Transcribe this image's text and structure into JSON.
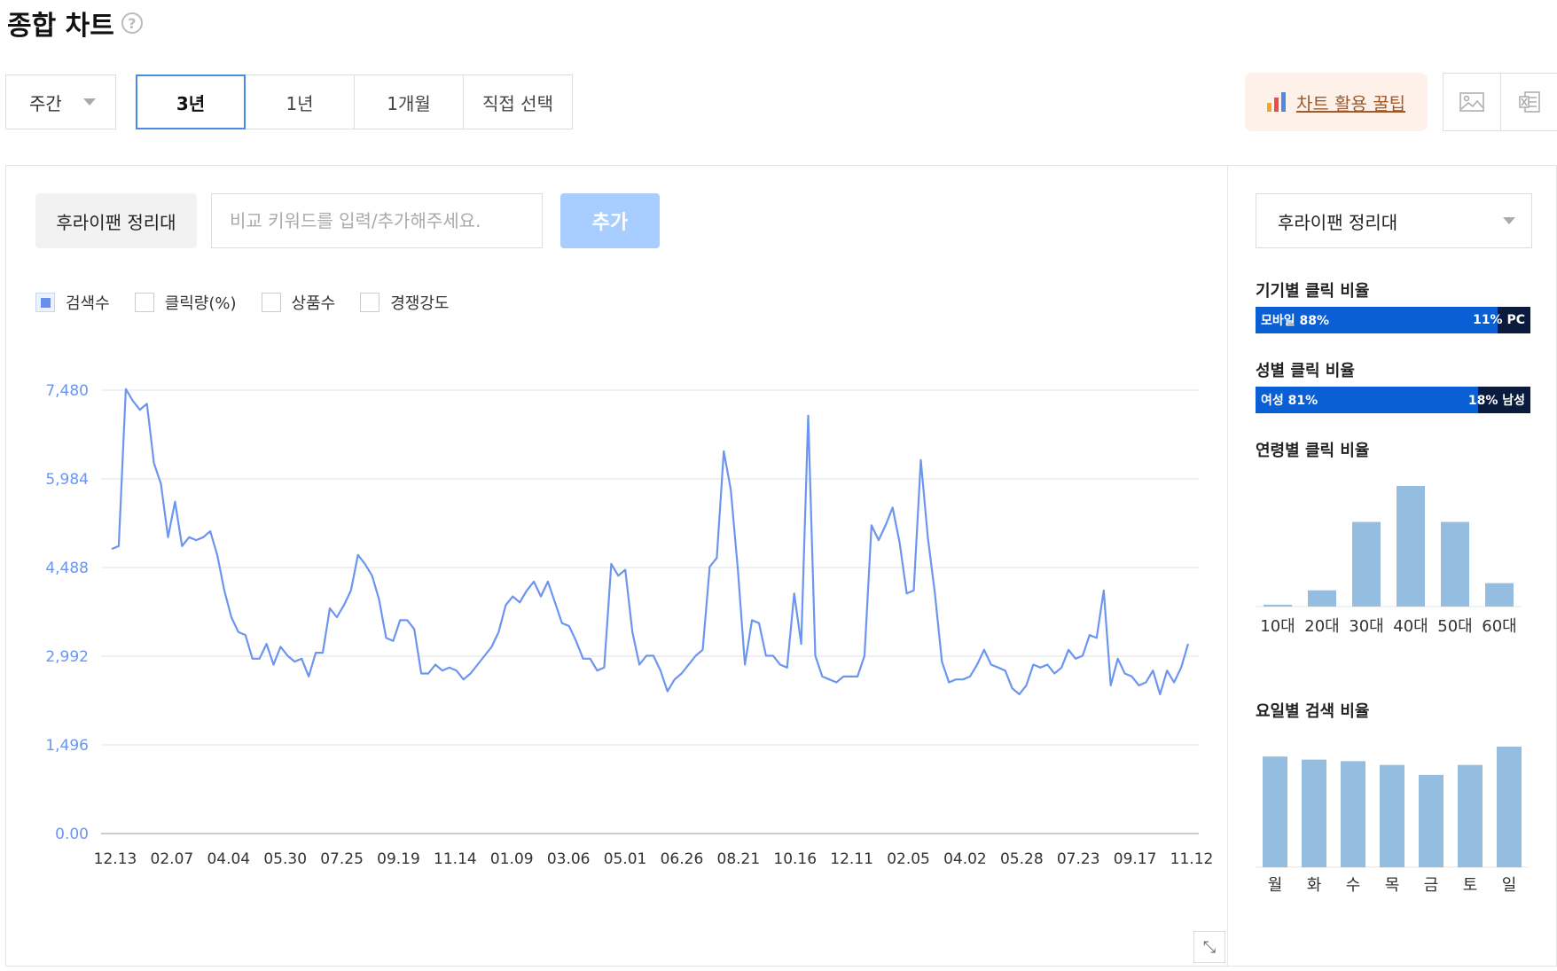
{
  "header": {
    "title": "종합 차트",
    "help_icon": "question-circle-icon"
  },
  "controls": {
    "period": "주간",
    "ranges": [
      {
        "label": "3년",
        "active": true
      },
      {
        "label": "1년",
        "active": false
      },
      {
        "label": "1개월",
        "active": false
      },
      {
        "label": "직접 선택",
        "active": false
      }
    ],
    "tip_label": "차트 활용 꿀팁",
    "tip_icon": "bar-chart-icon",
    "export_icons": [
      "image-download-icon",
      "excel-download-icon"
    ]
  },
  "keywords": {
    "selected": "후라이팬 정리대",
    "placeholder": "비교 키워드를 입력/추가해주세요.",
    "add_label": "추가"
  },
  "legend": [
    {
      "label": "검색수",
      "checked": true
    },
    {
      "label": "클릭량(%)",
      "checked": false
    },
    {
      "label": "상품수",
      "checked": false
    },
    {
      "label": "경쟁강도",
      "checked": false
    }
  ],
  "chart_data": [
    {
      "type": "line",
      "title": "",
      "xlabel": "",
      "ylabel": "",
      "ylim": [
        0,
        7480
      ],
      "y_ticks": [
        "0.00",
        "1,496",
        "2,992",
        "4,488",
        "5,984",
        "7,480"
      ],
      "x_tick_labels": [
        "12.13",
        "02.07",
        "04.04",
        "05.30",
        "07.25",
        "09.19",
        "11.14",
        "01.09",
        "03.06",
        "05.01",
        "06.26",
        "08.21",
        "10.16",
        "12.11",
        "02.05",
        "04.02",
        "05.28",
        "07.23",
        "09.17",
        "11.12"
      ],
      "grid": true,
      "color": "#6b95ee",
      "series": [
        {
          "name": "검색수",
          "values": [
            4800,
            4850,
            7500,
            7300,
            7150,
            7250,
            6250,
            5900,
            5000,
            5600,
            4850,
            5000,
            4950,
            5000,
            5100,
            4700,
            4100,
            3650,
            3400,
            3350,
            2950,
            2950,
            3200,
            2850,
            3150,
            3000,
            2900,
            2950,
            2650,
            3050,
            3050,
            3800,
            3650,
            3850,
            4100,
            4700,
            4550,
            4350,
            3950,
            3300,
            3250,
            3600,
            3600,
            3450,
            2700,
            2700,
            2850,
            2750,
            2800,
            2750,
            2600,
            2700,
            2850,
            3000,
            3150,
            3400,
            3850,
            4000,
            3900,
            4100,
            4250,
            4000,
            4250,
            3900,
            3550,
            3500,
            3250,
            2950,
            2950,
            2750,
            2800,
            4550,
            4350,
            4450,
            3400,
            2850,
            3000,
            3000,
            2750,
            2400,
            2600,
            2700,
            2850,
            3000,
            3100,
            4500,
            4650,
            6450,
            5800,
            4450,
            2850,
            3600,
            3550,
            3000,
            3000,
            2850,
            2800,
            4050,
            3200,
            7050,
            3000,
            2650,
            2600,
            2550,
            2650,
            2650,
            2650,
            3000,
            5200,
            4950,
            5200,
            5500,
            4900,
            4050,
            4100,
            6300,
            5000,
            4050,
            2900,
            2550,
            2600,
            2600,
            2650,
            2850,
            3100,
            2850,
            2800,
            2750,
            2450,
            2350,
            2500,
            2850,
            2800,
            2850,
            2700,
            2800,
            3100,
            2950,
            3000,
            3350,
            3300,
            4100,
            2500,
            2950,
            2700,
            2650,
            2500,
            2550,
            2750,
            2350,
            2750,
            2550,
            2800,
            3200
          ]
        }
      ]
    },
    {
      "type": "bar",
      "title": "연령별 클릭 비율",
      "categories": [
        "10대",
        "20대",
        "30대",
        "40대",
        "50대",
        "60대"
      ],
      "values": [
        0.5,
        4.5,
        23.5,
        33.5,
        23.5,
        6.5
      ],
      "color": "#94bde0"
    },
    {
      "type": "bar",
      "title": "요일별 검색 비율",
      "categories": [
        "월",
        "화",
        "수",
        "목",
        "금",
        "토",
        "일"
      ],
      "values": [
        14.5,
        14.1,
        13.9,
        13.4,
        12.1,
        13.4,
        15.8
      ],
      "color": "#94bde0"
    }
  ],
  "sidebar": {
    "keyword": "후라이팬 정리대",
    "device": {
      "title": "기기별 클릭 비율",
      "left_label": "모바일 88%",
      "right_label": "11% PC",
      "left_value": 88,
      "colors": [
        "#0b5fd4",
        "#0a1b3d"
      ]
    },
    "gender": {
      "title": "성별 클릭 비율",
      "left_label": "여성 81%",
      "right_label": "18% 남성",
      "left_value": 81,
      "colors": [
        "#0b5fd4",
        "#0a1b3d"
      ]
    }
  }
}
